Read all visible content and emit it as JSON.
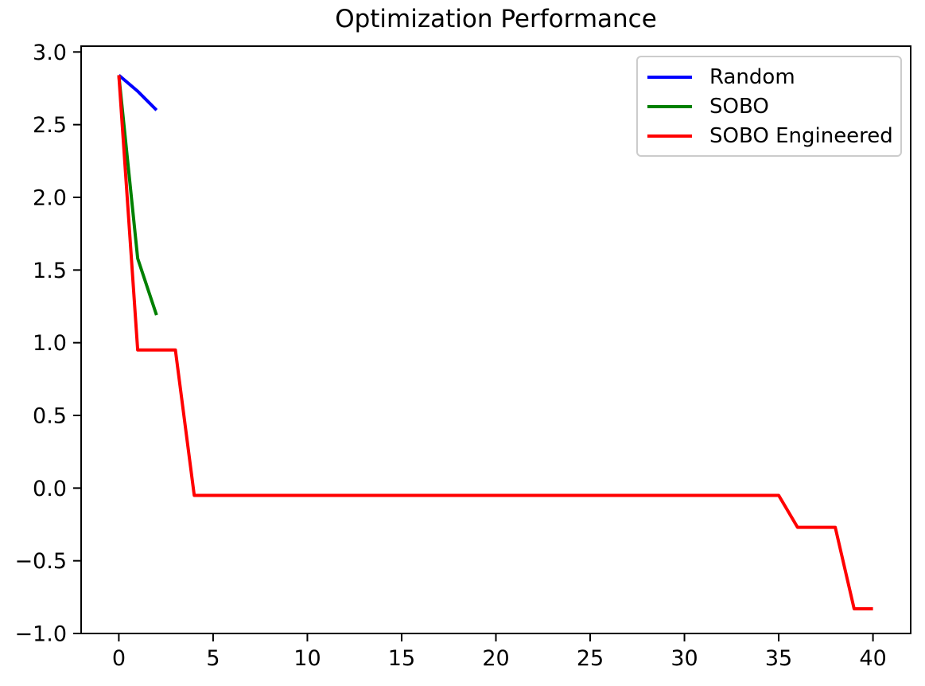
{
  "chart_data": {
    "type": "line",
    "title": "Optimization Performance",
    "xlabel": "",
    "ylabel": "",
    "xlim": [
      -2,
      42
    ],
    "ylim": [
      -1.0,
      3.04
    ],
    "grid": false,
    "legend_position": "upper right",
    "background_color": "#ffffff",
    "axis_color": "#000000",
    "xticks": {
      "values": [
        0,
        5,
        10,
        15,
        20,
        25,
        30,
        35,
        40
      ],
      "labels": [
        "0",
        "5",
        "10",
        "15",
        "20",
        "25",
        "30",
        "35",
        "40"
      ]
    },
    "yticks": {
      "values": [
        3.0,
        2.5,
        2.0,
        1.5,
        1.0,
        0.5,
        0.0,
        -0.5,
        -1.0
      ],
      "labels": [
        "3.0",
        "2.5",
        "2.0",
        "1.5",
        "1.0",
        "0.5",
        "0.0",
        "−0.5",
        "−1.0"
      ]
    },
    "series": [
      {
        "name": "Random",
        "color": "#0000ff",
        "x": [
          0,
          1,
          2
        ],
        "y": [
          2.84,
          2.73,
          2.6
        ]
      },
      {
        "name": "SOBO",
        "color": "#008000",
        "x": [
          0,
          1,
          2
        ],
        "y": [
          2.84,
          1.58,
          1.19
        ]
      },
      {
        "name": "SOBO Engineered",
        "color": "#ff0000",
        "x": [
          0,
          1,
          2,
          3,
          4,
          5,
          6,
          7,
          8,
          9,
          10,
          11,
          12,
          13,
          14,
          15,
          16,
          17,
          18,
          19,
          20,
          21,
          22,
          23,
          24,
          25,
          26,
          27,
          28,
          29,
          30,
          31,
          32,
          33,
          34,
          35,
          36,
          37,
          38,
          39,
          40
        ],
        "y": [
          2.84,
          0.95,
          0.95,
          0.95,
          -0.05,
          -0.05,
          -0.05,
          -0.05,
          -0.05,
          -0.05,
          -0.05,
          -0.05,
          -0.05,
          -0.05,
          -0.05,
          -0.05,
          -0.05,
          -0.05,
          -0.05,
          -0.05,
          -0.05,
          -0.05,
          -0.05,
          -0.05,
          -0.05,
          -0.05,
          -0.05,
          -0.05,
          -0.05,
          -0.05,
          -0.05,
          -0.05,
          -0.05,
          -0.05,
          -0.05,
          -0.05,
          -0.27,
          -0.27,
          -0.27,
          -0.83,
          -0.83
        ]
      }
    ]
  }
}
